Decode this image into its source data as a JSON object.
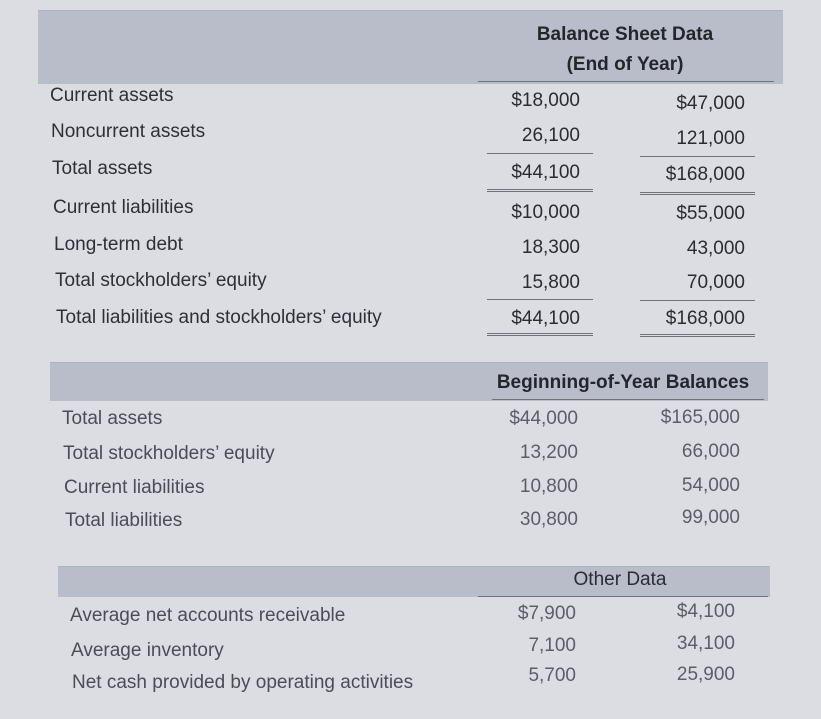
{
  "section1": {
    "title_line1": "Balance Sheet Data",
    "title_line2": "(End of Year)",
    "rows": [
      {
        "label": "Current assets",
        "c1": "$18,000",
        "c2": "$47,000"
      },
      {
        "label": "Noncurrent assets",
        "c1": "26,100",
        "c2": "121,000"
      },
      {
        "label": "Total assets",
        "c1": "$44,100",
        "c2": "$168,000"
      },
      {
        "label": "Current liabilities",
        "c1": "$10,000",
        "c2": "$55,000"
      },
      {
        "label": "Long-term debt",
        "c1": "18,300",
        "c2": "43,000"
      },
      {
        "label": "Total stockholders’ equity",
        "c1": "15,800",
        "c2": "70,000"
      },
      {
        "label": "Total liabilities and stockholders’ equity",
        "c1": "$44,100",
        "c2": "$168,000"
      }
    ]
  },
  "section2": {
    "title": "Beginning-of-Year Balances",
    "rows": [
      {
        "label": "Total assets",
        "c1": "$44,000",
        "c2": "$165,000"
      },
      {
        "label": "Total stockholders’ equity",
        "c1": "13,200",
        "c2": "66,000"
      },
      {
        "label": "Current liabilities",
        "c1": "10,800",
        "c2": "54,000"
      },
      {
        "label": "Total liabilities",
        "c1": "30,800",
        "c2": "99,000"
      }
    ]
  },
  "section3": {
    "title": "Other Data",
    "rows": [
      {
        "label": "Average net accounts receivable",
        "c1": "$7,900",
        "c2": "$4,100"
      },
      {
        "label": "Average inventory",
        "c1": "7,100",
        "c2": "34,100"
      },
      {
        "label": "Net cash provided by operating activities",
        "c1": "5,700",
        "c2": "25,900"
      }
    ]
  }
}
